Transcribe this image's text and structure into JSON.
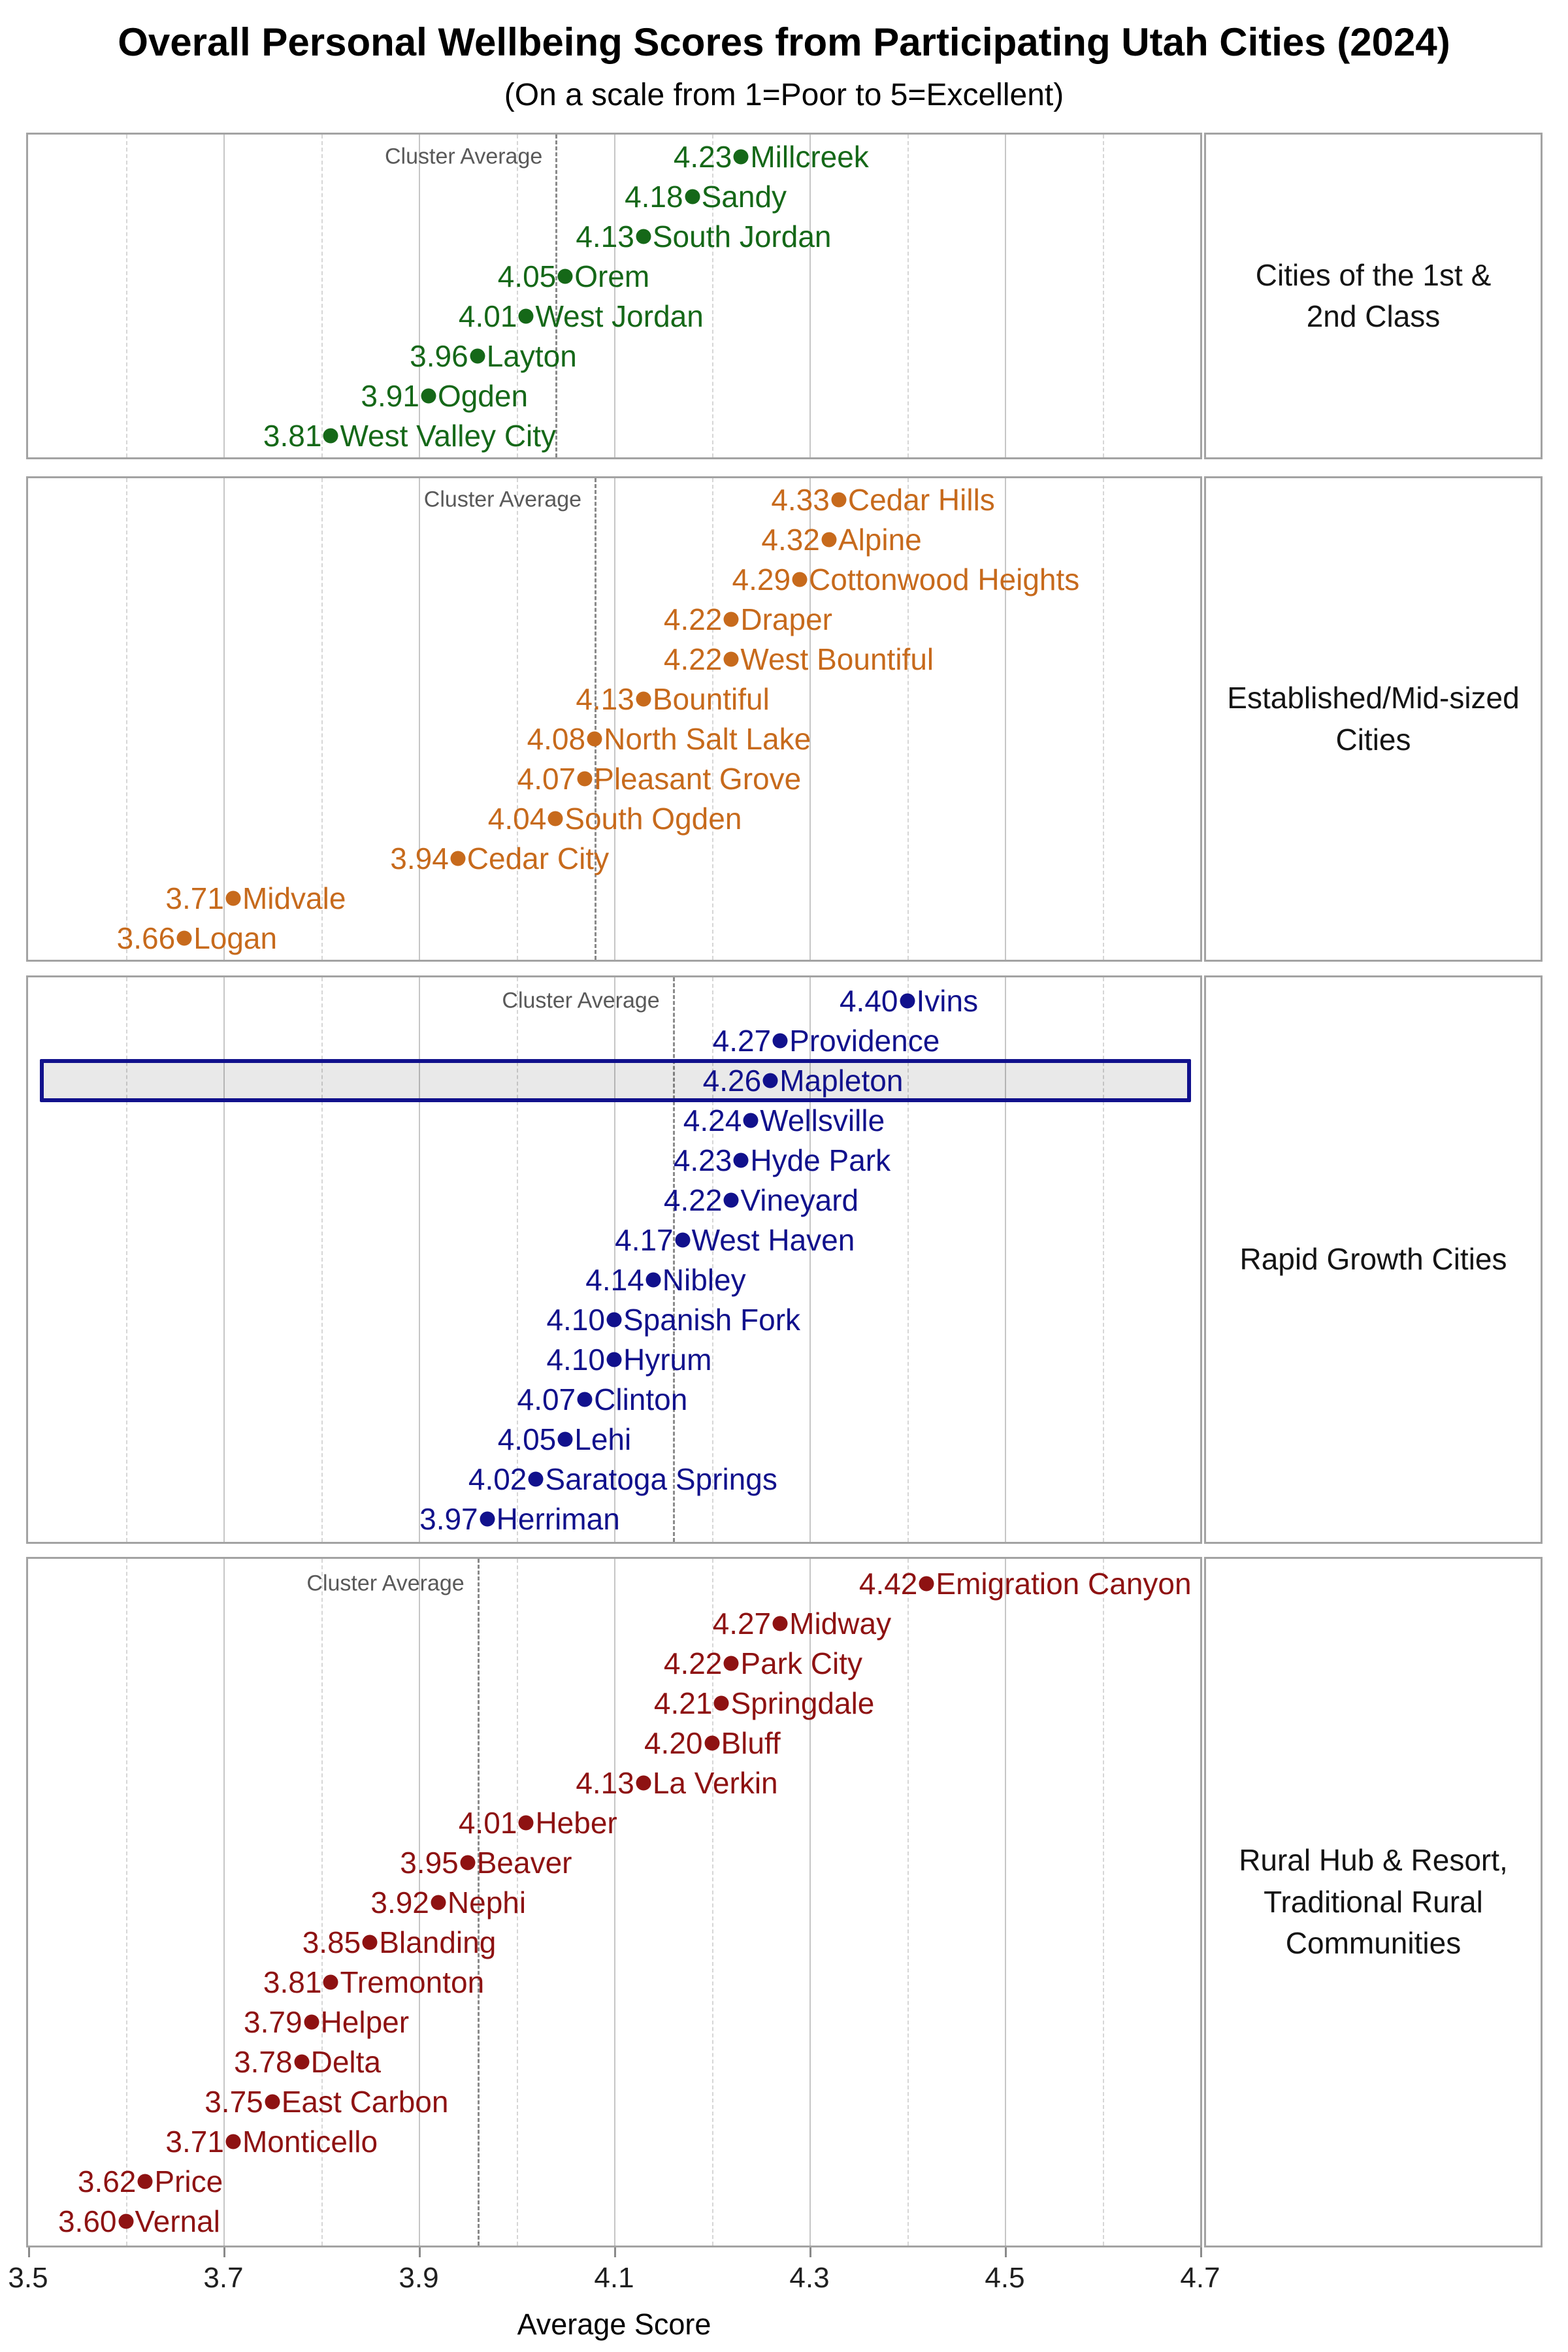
{
  "title": "Overall Personal Wellbeing Scores from Participating Utah Cities (2024)",
  "subtitle": "(On a scale from 1=Poor to 5=Excellent)",
  "cluster_average_label": "Cluster Average",
  "x_axis": {
    "label": "Average Score",
    "ticks": [
      3.5,
      3.7,
      3.9,
      4.1,
      4.3,
      4.5,
      4.7
    ],
    "minor_gridlines": [
      3.6,
      3.8,
      4.0,
      4.2,
      4.4,
      4.6
    ],
    "major_gridlines": [
      3.7,
      3.9,
      4.1,
      4.3,
      4.5
    ],
    "min": 3.5,
    "max": 4.7
  },
  "highlight": {
    "city": "Mapleton",
    "fill": "#e9e9e9",
    "border_color": "#11118c"
  },
  "colors": {
    "cluster1": "#156818",
    "cluster2": "#c76a1c",
    "cluster3": "#11118c",
    "cluster4": "#8e1212",
    "panel_border": "#a3a3a3",
    "average_line": "#8a8a8a",
    "average_label_text": "#595959"
  },
  "chart_data": {
    "type": "scatter",
    "title": "Overall Personal Wellbeing Scores from Participating Utah Cities (2024)",
    "subtitle": "(On a scale from 1=Poor to 5=Excellent)",
    "xlabel": "Average Score",
    "xlim": [
      3.5,
      4.7
    ],
    "grid": true,
    "panels": [
      {
        "label": "Cities of the 1st &\n2nd Class",
        "color": "#156818",
        "cluster_average": 4.04,
        "cities": [
          {
            "name": "Millcreek",
            "value": 4.23
          },
          {
            "name": "Sandy",
            "value": 4.18
          },
          {
            "name": "South Jordan",
            "value": 4.13
          },
          {
            "name": "Orem",
            "value": 4.05
          },
          {
            "name": "West Jordan",
            "value": 4.01
          },
          {
            "name": "Layton",
            "value": 3.96
          },
          {
            "name": "Ogden",
            "value": 3.91
          },
          {
            "name": "West Valley City",
            "value": 3.81
          }
        ]
      },
      {
        "label": "Established/Mid-sized\nCities",
        "color": "#c76a1c",
        "cluster_average": 4.08,
        "cities": [
          {
            "name": "Cedar Hills",
            "value": 4.33
          },
          {
            "name": "Alpine",
            "value": 4.32
          },
          {
            "name": "Cottonwood Heights",
            "value": 4.29
          },
          {
            "name": "Draper",
            "value": 4.22
          },
          {
            "name": "West Bountiful",
            "value": 4.22
          },
          {
            "name": "Bountiful",
            "value": 4.13
          },
          {
            "name": "North Salt Lake",
            "value": 4.08
          },
          {
            "name": "Pleasant Grove",
            "value": 4.07
          },
          {
            "name": "South Ogden",
            "value": 4.04
          },
          {
            "name": "Cedar City",
            "value": 3.94
          },
          {
            "name": "Midvale",
            "value": 3.71
          },
          {
            "name": "Logan",
            "value": 3.66
          }
        ]
      },
      {
        "label": "Rapid Growth Cities",
        "color": "#11118c",
        "cluster_average": 4.16,
        "cities": [
          {
            "name": "Ivins",
            "value": 4.4
          },
          {
            "name": "Providence",
            "value": 4.27
          },
          {
            "name": "Mapleton",
            "value": 4.26
          },
          {
            "name": "Wellsville",
            "value": 4.24
          },
          {
            "name": "Hyde Park",
            "value": 4.23
          },
          {
            "name": "Vineyard",
            "value": 4.22
          },
          {
            "name": "West Haven",
            "value": 4.17
          },
          {
            "name": "Nibley",
            "value": 4.14
          },
          {
            "name": "Spanish Fork",
            "value": 4.1
          },
          {
            "name": "Hyrum",
            "value": 4.1
          },
          {
            "name": "Clinton",
            "value": 4.07
          },
          {
            "name": "Lehi",
            "value": 4.05
          },
          {
            "name": "Saratoga Springs",
            "value": 4.02
          },
          {
            "name": "Herriman",
            "value": 3.97
          }
        ]
      },
      {
        "label": "Rural Hub & Resort,\nTraditional Rural\nCommunities",
        "color": "#8e1212",
        "cluster_average": 3.96,
        "cities": [
          {
            "name": "Emigration Canyon",
            "value": 4.42
          },
          {
            "name": "Midway",
            "value": 4.27
          },
          {
            "name": "Park City",
            "value": 4.22
          },
          {
            "name": "Springdale",
            "value": 4.21
          },
          {
            "name": "Bluff",
            "value": 4.2
          },
          {
            "name": "La Verkin",
            "value": 4.13
          },
          {
            "name": "Heber",
            "value": 4.01
          },
          {
            "name": "Beaver",
            "value": 3.95
          },
          {
            "name": "Nephi",
            "value": 3.92
          },
          {
            "name": "Blanding",
            "value": 3.85
          },
          {
            "name": "Tremonton",
            "value": 3.81
          },
          {
            "name": "Helper",
            "value": 3.79
          },
          {
            "name": "Delta",
            "value": 3.78
          },
          {
            "name": "East Carbon",
            "value": 3.75
          },
          {
            "name": "Monticello",
            "value": 3.71
          },
          {
            "name": "Price",
            "value": 3.62
          },
          {
            "name": "Vernal",
            "value": 3.6
          }
        ]
      }
    ]
  }
}
